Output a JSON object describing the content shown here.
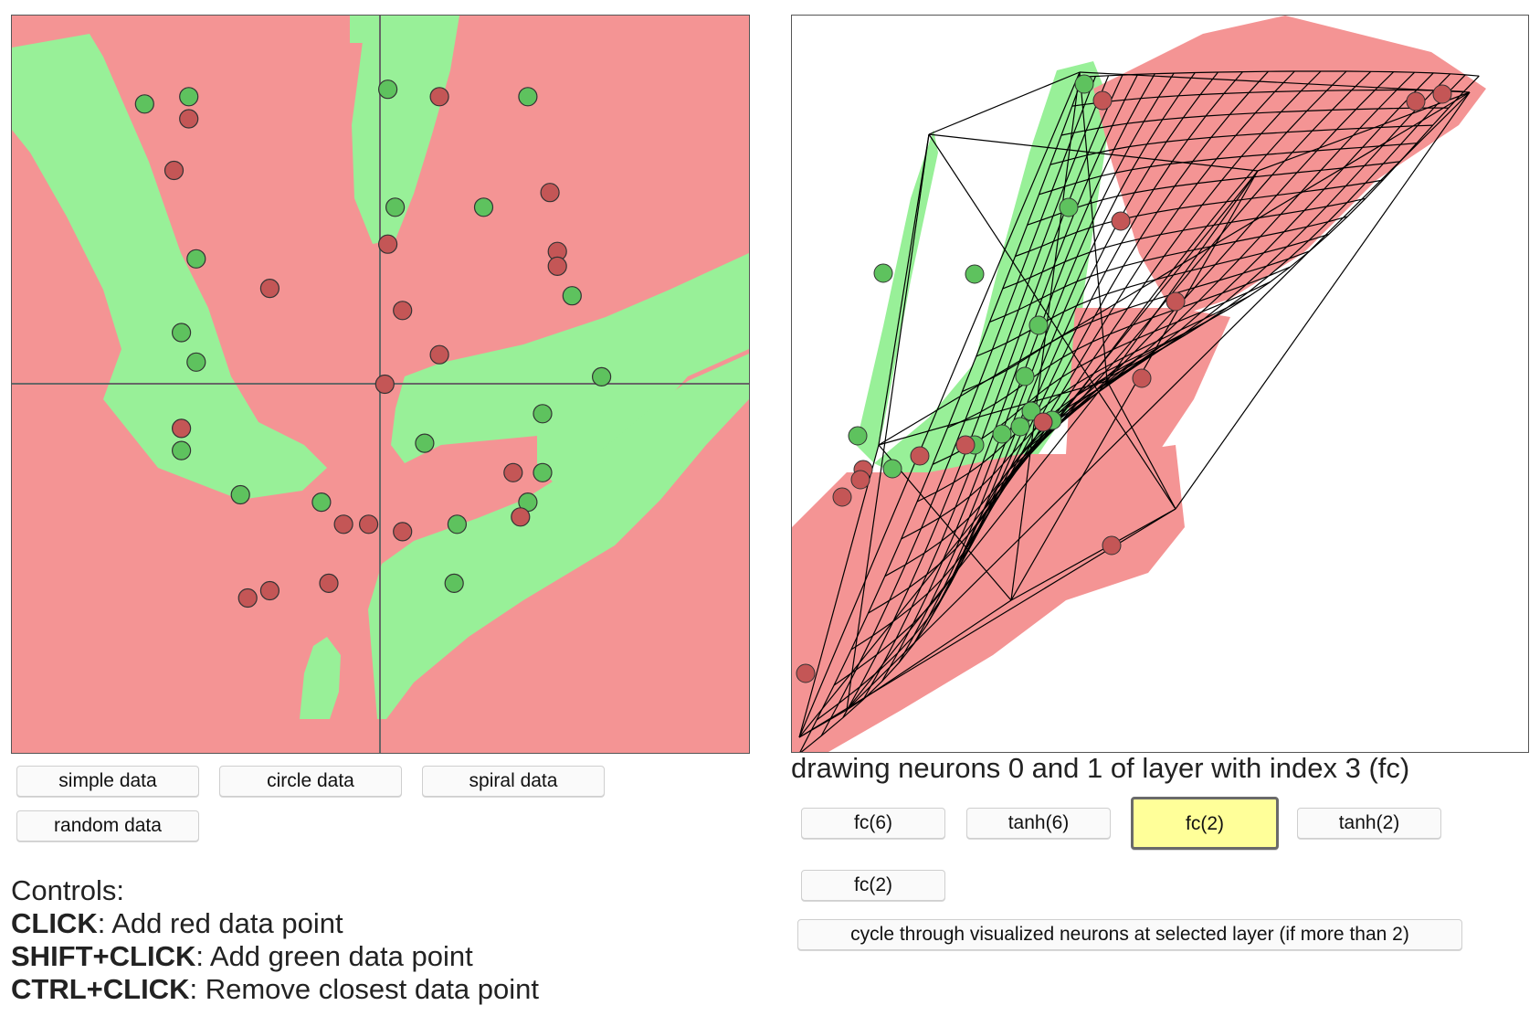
{
  "colors": {
    "region_green": "#98f098",
    "region_red": "#f49494",
    "point_green": "#5ec25e",
    "point_red": "#c45656",
    "point_outline": "#333333",
    "axis": "#666666",
    "wire": "#000000",
    "selected_button": "#ffff99"
  },
  "decision_panel": {
    "points": [
      {
        "label": "green",
        "x": -1.6,
        "y": 1.9
      },
      {
        "label": "green",
        "x": -1.3,
        "y": 1.95
      },
      {
        "label": "red",
        "x": -1.3,
        "y": 1.8
      },
      {
        "label": "red",
        "x": -1.4,
        "y": 1.45
      },
      {
        "label": "green",
        "x": -1.25,
        "y": 0.85
      },
      {
        "label": "red",
        "x": -0.75,
        "y": 0.65
      },
      {
        "label": "green",
        "x": -1.35,
        "y": 0.35
      },
      {
        "label": "green",
        "x": -1.25,
        "y": 0.15
      },
      {
        "label": "red",
        "x": -1.35,
        "y": -0.3
      },
      {
        "label": "green",
        "x": -1.35,
        "y": -0.45
      },
      {
        "label": "green",
        "x": -0.95,
        "y": -0.75
      },
      {
        "label": "green",
        "x": -0.4,
        "y": -0.8
      },
      {
        "label": "red",
        "x": -0.25,
        "y": -0.95
      },
      {
        "label": "red",
        "x": -0.08,
        "y": -0.95
      },
      {
        "label": "green",
        "x": 0.05,
        "y": 2.0
      },
      {
        "label": "red",
        "x": 0.4,
        "y": 1.95
      },
      {
        "label": "green",
        "x": 1.0,
        "y": 1.95
      },
      {
        "label": "green",
        "x": 0.1,
        "y": 1.2
      },
      {
        "label": "red",
        "x": 0.05,
        "y": 0.95
      },
      {
        "label": "green",
        "x": 0.7,
        "y": 1.2
      },
      {
        "label": "red",
        "x": 1.15,
        "y": 1.3
      },
      {
        "label": "red",
        "x": 1.2,
        "y": 0.9
      },
      {
        "label": "red",
        "x": 1.2,
        "y": 0.8
      },
      {
        "label": "green",
        "x": 1.3,
        "y": 0.6
      },
      {
        "label": "red",
        "x": 0.15,
        "y": 0.5
      },
      {
        "label": "red",
        "x": 0.4,
        "y": 0.2
      },
      {
        "label": "red",
        "x": 0.03,
        "y": 0.0
      },
      {
        "label": "green",
        "x": 1.5,
        "y": 0.05
      },
      {
        "label": "green",
        "x": 1.1,
        "y": -0.2
      },
      {
        "label": "green",
        "x": 0.3,
        "y": -0.4
      },
      {
        "label": "red",
        "x": 0.9,
        "y": -0.6
      },
      {
        "label": "green",
        "x": 1.1,
        "y": -0.6
      },
      {
        "label": "green",
        "x": 1.0,
        "y": -0.8
      },
      {
        "label": "red",
        "x": 0.95,
        "y": -0.9
      },
      {
        "label": "green",
        "x": 0.52,
        "y": -0.95
      },
      {
        "label": "red",
        "x": 0.15,
        "y": -1.0
      },
      {
        "label": "green",
        "x": 0.5,
        "y": -1.35
      },
      {
        "label": "red",
        "x": -0.35,
        "y": -1.35
      },
      {
        "label": "red",
        "x": -0.75,
        "y": -1.4
      },
      {
        "label": "red",
        "x": -0.9,
        "y": -1.45
      }
    ]
  },
  "buttons": {
    "simple": "simple data",
    "circle": "circle data",
    "spiral": "spiral data",
    "random": "random data"
  },
  "controls": {
    "title": "Controls:",
    "click_key": "CLICK",
    "click_desc": ": Add red data point",
    "shift_key": "SHIFT+CLICK",
    "shift_desc": ": Add green data point",
    "ctrl_key": "CTRL+CLICK",
    "ctrl_desc": ": Remove closest data point"
  },
  "layer_panel": {
    "caption": "drawing neurons 0 and 1 of layer with index 3 (fc)",
    "layers": [
      "fc(6)",
      "tanh(6)",
      "fc(2)",
      "tanh(2)",
      "fc(2)"
    ],
    "selected_index": 2,
    "cycle_label": "cycle through visualized neurons at selected layer (if more than 2)"
  }
}
